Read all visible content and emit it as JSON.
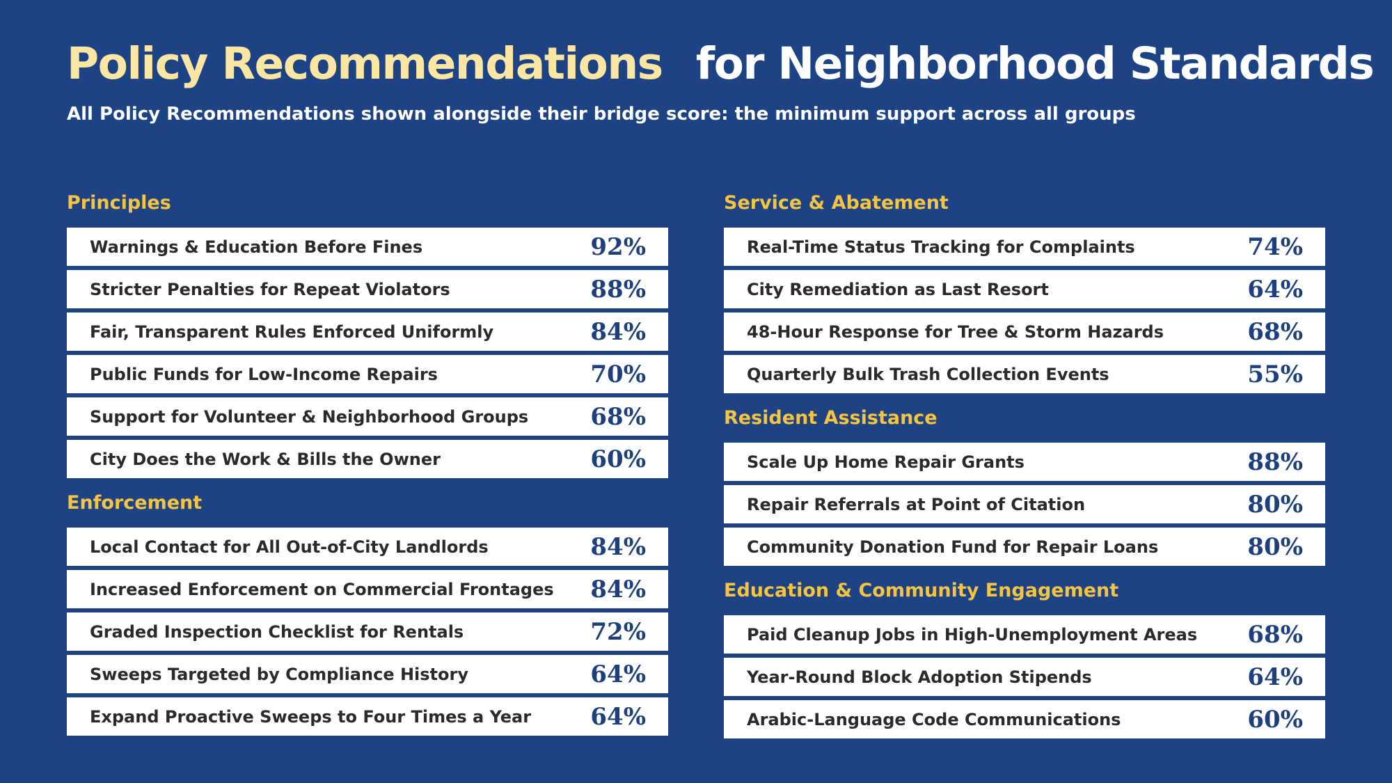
{
  "header": {
    "title_accent": "Policy Recommendations",
    "title_main": "for Neighborhood Standards",
    "subtitle": "All Policy Recommendations shown alongside their bridge score: the minimum support across all groups"
  },
  "colors": {
    "background": "#1e4385",
    "title_accent": "#fbe7a3",
    "section_title": "#f5c542",
    "row_background": "#ffffff",
    "row_text": "#2a2a2a",
    "score_text": "#1e3f7d"
  },
  "left_column": [
    {
      "title": "Principles",
      "items": [
        {
          "label": "Warnings & Education Before Fines",
          "value": "92%"
        },
        {
          "label": "Stricter Penalties for Repeat Violators",
          "value": "88%"
        },
        {
          "label": "Fair, Transparent Rules Enforced Uniformly",
          "value": "84%"
        },
        {
          "label": "Public Funds for Low-Income Repairs",
          "value": "70%"
        },
        {
          "label": "Support for Volunteer & Neighborhood Groups",
          "value": "68%"
        },
        {
          "label": "City Does the Work & Bills the Owner",
          "value": "60%"
        }
      ]
    },
    {
      "title": "Enforcement",
      "items": [
        {
          "label": "Local Contact for All Out-of-City Landlords",
          "value": "84%"
        },
        {
          "label": "Increased Enforcement on Commercial Frontages",
          "value": "84%"
        },
        {
          "label": "Graded Inspection Checklist for Rentals",
          "value": "72%"
        },
        {
          "label": "Sweeps Targeted by Compliance History",
          "value": "64%"
        },
        {
          "label": "Expand Proactive Sweeps to Four Times a Year",
          "value": "64%"
        }
      ]
    }
  ],
  "right_column": [
    {
      "title": "Service & Abatement",
      "items": [
        {
          "label": "Real-Time Status Tracking for Complaints",
          "value": "74%"
        },
        {
          "label": "City Remediation as Last Resort",
          "value": "64%"
        },
        {
          "label": "48-Hour Response for Tree & Storm Hazards",
          "value": "68%"
        },
        {
          "label": "Quarterly Bulk Trash Collection Events",
          "value": "55%"
        }
      ]
    },
    {
      "title": "Resident Assistance",
      "items": [
        {
          "label": "Scale Up Home Repair Grants",
          "value": "88%"
        },
        {
          "label": "Repair Referrals at Point of Citation",
          "value": "80%"
        },
        {
          "label": "Community Donation Fund for Repair Loans",
          "value": "80%"
        }
      ]
    },
    {
      "title": "Education & Community Engagement",
      "items": [
        {
          "label": "Paid Cleanup Jobs in High-Unemployment Areas",
          "value": "68%"
        },
        {
          "label": "Year-Round Block Adoption Stipends",
          "value": "64%"
        },
        {
          "label": "Arabic-Language Code Communications",
          "value": "60%"
        }
      ]
    }
  ]
}
